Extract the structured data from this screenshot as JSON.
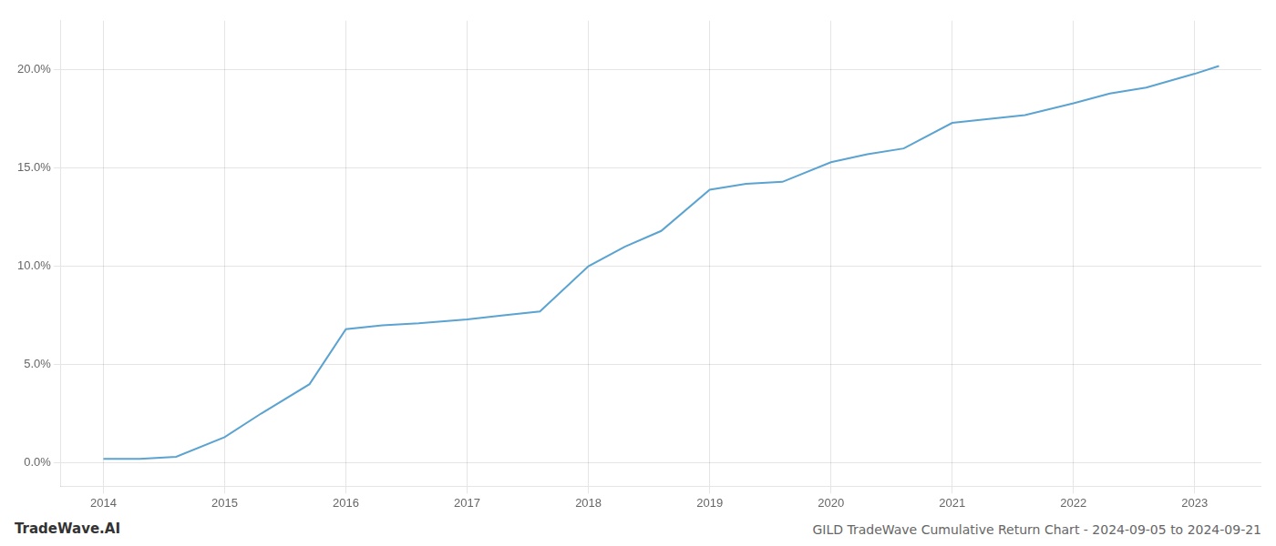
{
  "chart_data": {
    "type": "line",
    "title": "GILD TradeWave Cumulative Return Chart - 2024-09-05 to 2024-09-21",
    "annotations": [
      "TradeWave.AI"
    ],
    "x": [
      2014.0,
      2014.3,
      2014.6,
      2015.0,
      2015.3,
      2015.7,
      2016.0,
      2016.3,
      2016.6,
      2017.0,
      2017.3,
      2017.6,
      2018.0,
      2018.3,
      2018.6,
      2019.0,
      2019.3,
      2019.6,
      2020.0,
      2020.3,
      2020.6,
      2021.0,
      2021.3,
      2021.6,
      2022.0,
      2022.3,
      2022.6,
      2023.0,
      2023.2
    ],
    "values": [
      0.002,
      0.002,
      0.003,
      0.013,
      0.025,
      0.04,
      0.068,
      0.07,
      0.071,
      0.073,
      0.075,
      0.077,
      0.1,
      0.11,
      0.118,
      0.139,
      0.142,
      0.143,
      0.153,
      0.157,
      0.16,
      0.173,
      0.175,
      0.177,
      0.183,
      0.188,
      0.191,
      0.198,
      0.202
    ],
    "color": "#5ba3d0",
    "xlim": [
      2013.65,
      2023.55
    ],
    "xticks": [
      2014,
      2015,
      2016,
      2017,
      2018,
      2019,
      2020,
      2021,
      2022,
      2023
    ],
    "ylim": [
      -0.012,
      0.225
    ],
    "yticks": [
      {
        "value": 0.0,
        "label": "0.0%"
      },
      {
        "value": 0.05,
        "label": "5.0%"
      },
      {
        "value": 0.1,
        "label": "10.0%"
      },
      {
        "value": 0.15,
        "label": "15.0%"
      },
      {
        "value": 0.2,
        "label": "20.0%"
      }
    ],
    "grid": true
  }
}
